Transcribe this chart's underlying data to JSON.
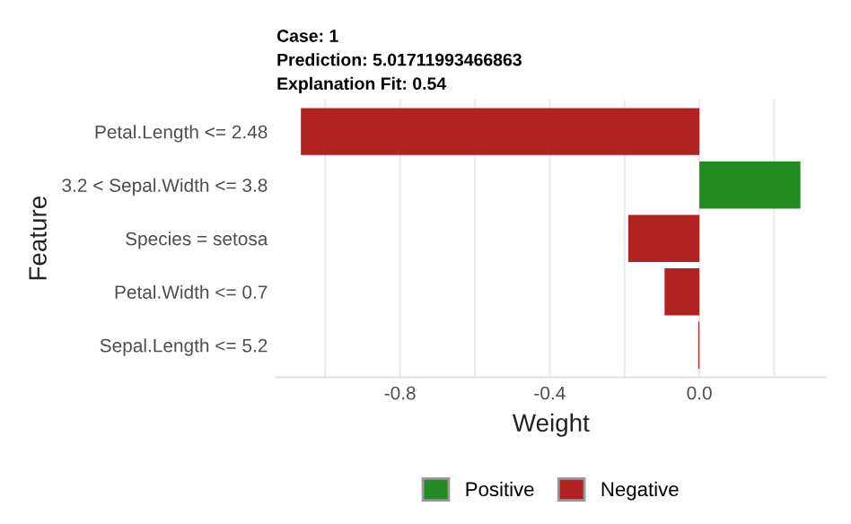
{
  "chart_data": {
    "type": "bar",
    "orientation": "horizontal",
    "title": "Case: 1\nPrediction: 5.01711993466863\nExplanation Fit: 0.54",
    "xlabel": "Weight",
    "ylabel": "Feature",
    "categories": [
      "Petal.Length <= 2.48",
      "3.2 < Sepal.Width <= 3.8",
      "Species = setosa",
      "Petal.Width <= 0.7",
      "Sepal.Length <= 5.2"
    ],
    "series": [
      {
        "name": "Positive",
        "color": "#228b22",
        "values": [
          null,
          0.27,
          null,
          null,
          null
        ]
      },
      {
        "name": "Negative",
        "color": "#b22222",
        "values": [
          -1.065,
          null,
          -0.19,
          -0.093,
          -0.003
        ]
      }
    ],
    "xlim": [
      -1.13,
      0.337
    ],
    "xticks": [
      {
        "value": -1.0,
        "label": null
      },
      -0.8,
      {
        "value": -0.6,
        "label": null
      },
      -0.4,
      {
        "value": -0.2,
        "label": null
      },
      {
        "value": 0.0,
        "label": "0.0"
      },
      {
        "value": 0.2,
        "label": null
      }
    ],
    "grid": "x",
    "legend": "bottom"
  }
}
